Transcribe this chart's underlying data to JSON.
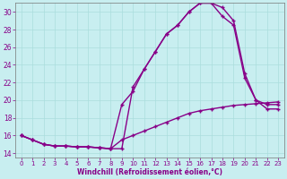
{
  "xlabel": "Windchill (Refroidissement éolien,°C)",
  "bg_color": "#c8eef0",
  "line_color": "#880088",
  "grid_color": "#aadddd",
  "xlim_min": -0.5,
  "xlim_max": 23.5,
  "ylim_min": 13.5,
  "ylim_max": 31.0,
  "yticks": [
    14,
    16,
    18,
    20,
    22,
    24,
    26,
    28,
    30
  ],
  "xticks": [
    0,
    1,
    2,
    3,
    4,
    5,
    6,
    7,
    8,
    9,
    10,
    11,
    12,
    13,
    14,
    15,
    16,
    17,
    18,
    19,
    20,
    21,
    22,
    23
  ],
  "line1_x": [
    0,
    1,
    2,
    3,
    4,
    5,
    6,
    7,
    8,
    9,
    10,
    11,
    12,
    13,
    14,
    15,
    16,
    17,
    18,
    19,
    20,
    21,
    22,
    23
  ],
  "line1_y": [
    16.0,
    15.5,
    15.0,
    14.8,
    14.8,
    14.7,
    14.7,
    14.6,
    14.5,
    19.5,
    21.0,
    23.5,
    25.5,
    27.5,
    28.5,
    30.0,
    31.0,
    31.0,
    30.5,
    29.0,
    23.0,
    20.0,
    19.5,
    19.5
  ],
  "line2_x": [
    0,
    1,
    2,
    3,
    4,
    5,
    6,
    7,
    8,
    9,
    10,
    11,
    12,
    13,
    14,
    15,
    16,
    17,
    18,
    19,
    20,
    21,
    22,
    23
  ],
  "line2_y": [
    16.0,
    15.5,
    15.0,
    14.8,
    14.8,
    14.7,
    14.7,
    14.6,
    14.5,
    14.5,
    21.5,
    23.5,
    25.5,
    27.5,
    28.5,
    30.0,
    31.0,
    31.0,
    29.5,
    28.5,
    22.5,
    20.0,
    19.0,
    19.0
  ],
  "line3_x": [
    0,
    1,
    2,
    3,
    4,
    5,
    6,
    7,
    8,
    9,
    10,
    11,
    12,
    13,
    14,
    15,
    16,
    17,
    18,
    19,
    20,
    21,
    22,
    23
  ],
  "line3_y": [
    16.0,
    15.5,
    15.0,
    14.8,
    14.8,
    14.7,
    14.7,
    14.6,
    14.5,
    15.5,
    16.0,
    16.5,
    17.0,
    17.5,
    18.0,
    18.5,
    18.8,
    19.0,
    19.2,
    19.4,
    19.5,
    19.6,
    19.7,
    19.8
  ],
  "marker": "+",
  "markersize": 3,
  "linewidth": 1.0
}
